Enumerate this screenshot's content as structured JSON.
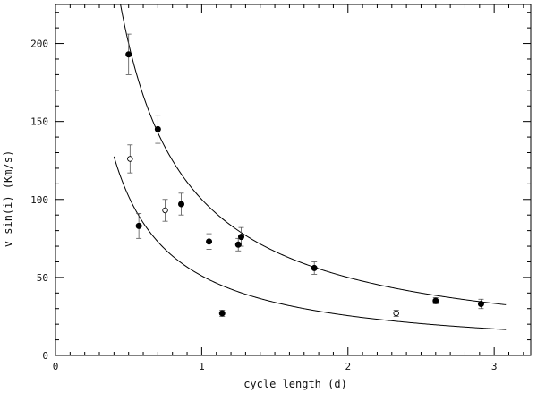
{
  "chart_data": {
    "type": "scatter",
    "title": "",
    "xlabel": "cycle length (d)",
    "ylabel": "v sin(i) (Km/s)",
    "xlim": [
      0,
      3.25
    ],
    "ylim": [
      0,
      225
    ],
    "x_ticks": [
      "0",
      "1",
      "2",
      "3"
    ],
    "y_ticks": [
      "0",
      "50",
      "100",
      "150",
      "200"
    ],
    "grid": false,
    "legend": "none",
    "series": [
      {
        "marker": "filled-circle",
        "color": "#000000",
        "points": [
          {
            "x": 0.5,
            "y": 193,
            "err": 13
          },
          {
            "x": 0.57,
            "y": 83,
            "err": 8
          },
          {
            "x": 0.7,
            "y": 145,
            "err": 9
          },
          {
            "x": 0.86,
            "y": 97,
            "err": 7
          },
          {
            "x": 1.05,
            "y": 73,
            "err": 5
          },
          {
            "x": 1.14,
            "y": 27,
            "err": 2
          },
          {
            "x": 1.25,
            "y": 71,
            "err": 4
          },
          {
            "x": 1.27,
            "y": 76,
            "err": 6
          },
          {
            "x": 1.77,
            "y": 56,
            "err": 4
          },
          {
            "x": 2.6,
            "y": 35,
            "err": 2
          },
          {
            "x": 2.91,
            "y": 33,
            "err": 3
          }
        ]
      },
      {
        "marker": "open-circle",
        "color": "#000000",
        "points": [
          {
            "x": 0.51,
            "y": 126,
            "err": 9
          },
          {
            "x": 0.75,
            "y": 93,
            "err": 7
          },
          {
            "x": 2.33,
            "y": 27,
            "err": 2
          }
        ]
      }
    ],
    "curves": [
      {
        "form": "y = k / x",
        "k": 100,
        "x_range": [
          0.42,
          3.08
        ]
      },
      {
        "form": "y = k / x",
        "k": 51,
        "x_range": [
          0.4,
          3.08
        ]
      }
    ],
    "colors": {
      "ink": "#000000",
      "error_bar": "#555555",
      "background": "#ffffff"
    }
  }
}
